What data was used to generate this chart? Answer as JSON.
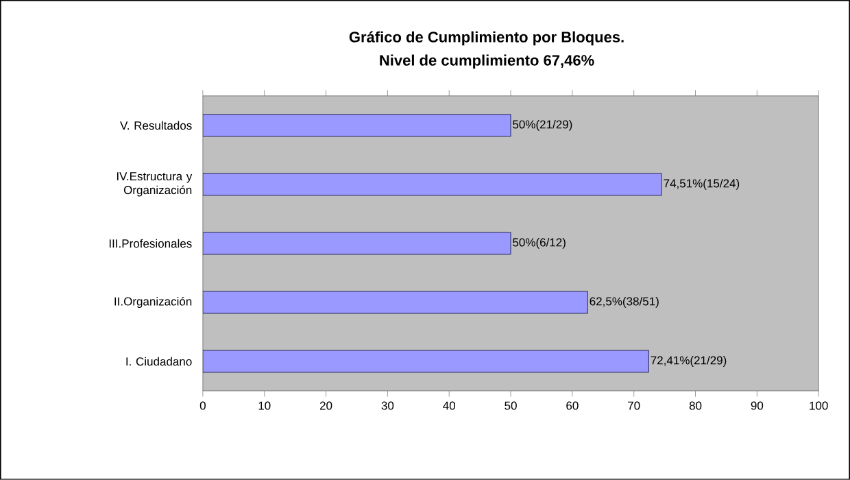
{
  "chart_data": {
    "type": "bar",
    "orientation": "horizontal",
    "title": "Gráfico de Cumplimiento por Bloques.",
    "subtitle": "Nivel de cumplimiento 67,46%",
    "categories": [
      "V. Resultados",
      "IV.Estructura y Organización",
      "III.Profesionales",
      "II.Organización",
      "I. Ciudadano"
    ],
    "values": [
      50,
      74.51,
      50,
      62.5,
      72.41
    ],
    "value_labels": [
      "50%(21/29)",
      "74,51%(15/24)",
      "50%(6/12)",
      "62,5%(38/51)",
      "72,41%(21/29)"
    ],
    "color": "#9999ff",
    "xlim": [
      0,
      100
    ],
    "xticks": [
      0,
      10,
      20,
      30,
      40,
      50,
      60,
      70,
      80,
      90,
      100
    ],
    "grid": false
  }
}
